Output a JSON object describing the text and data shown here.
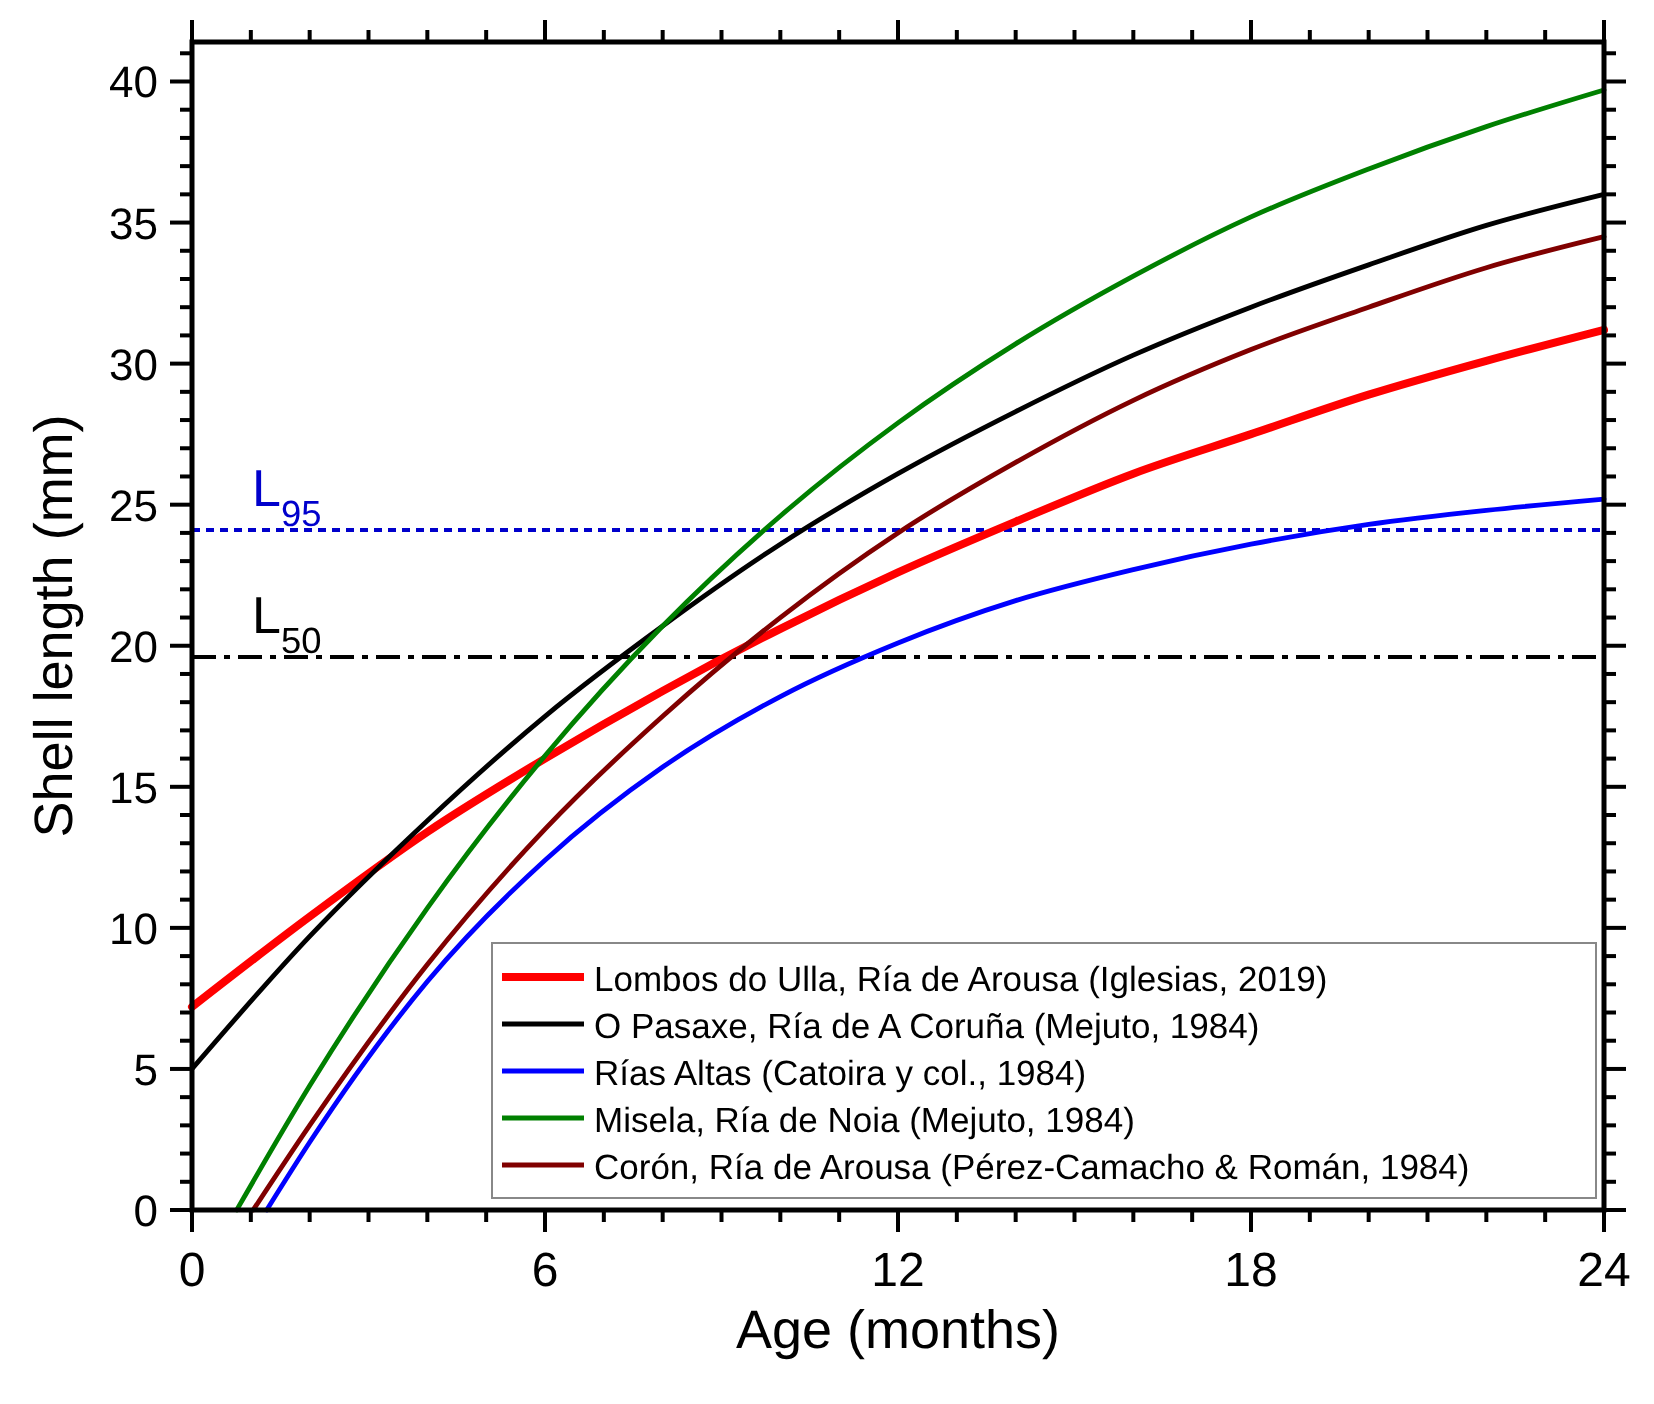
{
  "chart_data": {
    "type": "line",
    "xlabel": "Age (months)",
    "ylabel": "Shell length (mm)",
    "x": [
      0,
      2,
      4,
      6,
      8,
      10,
      12,
      14,
      16,
      18,
      20,
      22,
      24
    ],
    "series": [
      {
        "name": "Lombos do Ulla, Ría de Arousa (Iglesias, 2019)",
        "color": "#ff0000",
        "values": [
          7.2,
          10.4,
          13.4,
          16.0,
          18.4,
          20.6,
          22.6,
          24.4,
          26.1,
          27.5,
          28.9,
          30.1,
          31.2
        ]
      },
      {
        "name": "O Pasaxe, Ría de A Coruña (Mejuto, 1984)",
        "color": "#000000",
        "values": [
          5.0,
          9.7,
          13.8,
          17.5,
          20.7,
          23.6,
          26.1,
          28.3,
          30.3,
          32.0,
          33.5,
          34.9,
          36.0
        ]
      },
      {
        "name": "Rías Altas (Catoira y col., 1984)",
        "color": "#0000ff",
        "x": [
          1.27,
          2,
          4,
          6,
          8,
          10,
          12,
          14,
          16,
          18,
          20,
          22,
          24
        ],
        "values": [
          0,
          2.4,
          8.1,
          12.4,
          15.7,
          18.2,
          20.1,
          21.6,
          22.7,
          23.6,
          24.3,
          24.8,
          25.2
        ]
      },
      {
        "name": "Misela, Ría de Noia (Mejuto, 1984)",
        "color": "#008000",
        "x": [
          0.76,
          2,
          4,
          6,
          8,
          10,
          12,
          14,
          16,
          18,
          20,
          22,
          24
        ],
        "values": [
          0,
          4.4,
          10.7,
          16.1,
          20.7,
          24.6,
          27.9,
          30.7,
          33.1,
          35.2,
          36.9,
          38.4,
          39.7
        ]
      },
      {
        "name": "Corón, Ría de Arousa (Pérez-Camacho & Román, 1984)",
        "color": "#800000",
        "x": [
          1.04,
          2,
          4,
          6,
          8,
          10,
          12,
          14,
          16,
          18,
          20,
          22,
          24
        ],
        "values": [
          0,
          3.0,
          8.7,
          13.5,
          17.5,
          21.0,
          24.0,
          26.5,
          28.7,
          30.5,
          32.0,
          33.4,
          34.5
        ]
      }
    ],
    "xlim": [
      0,
      24
    ],
    "xticks": [
      0,
      {
        "value": 1,
        "label": null
      },
      {
        "value": 2,
        "label": null
      },
      {
        "value": 3,
        "label": null
      },
      {
        "value": 4,
        "label": null
      },
      {
        "value": 5,
        "label": null
      },
      6,
      {
        "value": 7,
        "label": null
      },
      {
        "value": 8,
        "label": null
      },
      {
        "value": 9,
        "label": null
      },
      {
        "value": 10,
        "label": null
      },
      {
        "value": 11,
        "label": null
      },
      12,
      {
        "value": 13,
        "label": null
      },
      {
        "value": 14,
        "label": null
      },
      {
        "value": 15,
        "label": null
      },
      {
        "value": 16,
        "label": null
      },
      {
        "value": 17,
        "label": null
      },
      18,
      {
        "value": 19,
        "label": null
      },
      {
        "value": 20,
        "label": null
      },
      {
        "value": 21,
        "label": null
      },
      {
        "value": 22,
        "label": null
      },
      {
        "value": 23,
        "label": null
      },
      24
    ],
    "ylim": [
      0,
      41.4
    ],
    "yticks": [
      0,
      {
        "value": 1,
        "label": null
      },
      {
        "value": 2,
        "label": null
      },
      {
        "value": 3,
        "label": null
      },
      {
        "value": 4,
        "label": null
      },
      5,
      {
        "value": 6,
        "label": null
      },
      {
        "value": 7,
        "label": null
      },
      {
        "value": 8,
        "label": null
      },
      {
        "value": 9,
        "label": null
      },
      10,
      {
        "value": 11,
        "label": null
      },
      {
        "value": 12,
        "label": null
      },
      {
        "value": 13,
        "label": null
      },
      {
        "value": 14,
        "label": null
      },
      15,
      {
        "value": 16,
        "label": null
      },
      {
        "value": 17,
        "label": null
      },
      {
        "value": 18,
        "label": null
      },
      {
        "value": 19,
        "label": null
      },
      20,
      {
        "value": 21,
        "label": null
      },
      {
        "value": 22,
        "label": null
      },
      {
        "value": 23,
        "label": null
      },
      {
        "value": 24,
        "label": null
      },
      25,
      {
        "value": 26,
        "label": null
      },
      {
        "value": 27,
        "label": null
      },
      {
        "value": 28,
        "label": null
      },
      {
        "value": 29,
        "label": null
      },
      30,
      {
        "value": 31,
        "label": null
      },
      {
        "value": 32,
        "label": null
      },
      {
        "value": 33,
        "label": null
      },
      {
        "value": 34,
        "label": null
      },
      35,
      {
        "value": 36,
        "label": null
      },
      {
        "value": 37,
        "label": null
      },
      {
        "value": 38,
        "label": null
      },
      {
        "value": 39,
        "label": null
      },
      40,
      {
        "value": 41,
        "label": null
      }
    ],
    "ref_lines": [
      {
        "axis": "y",
        "value": 24.1,
        "label": "L$_{95}$",
        "color": "#0000cc",
        "line_style": "dotted"
      },
      {
        "axis": "y",
        "value": 19.6,
        "label": "L$_{50}$",
        "color": "#000000",
        "line_style": "dashed"
      }
    ],
    "legend": "bottom right",
    "grid": false,
    "marker": "none",
    "line_style": "solid"
  }
}
